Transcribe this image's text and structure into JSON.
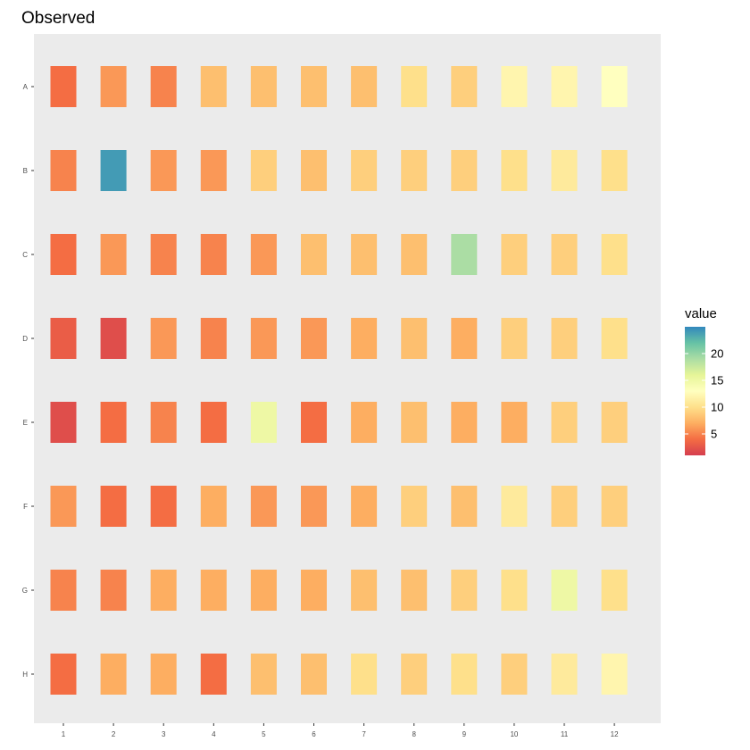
{
  "chart_data": {
    "type": "heatmap",
    "title": "Observed",
    "xlabel": "",
    "ylabel": "",
    "x_categories": [
      "1",
      "2",
      "3",
      "4",
      "5",
      "6",
      "7",
      "8",
      "9",
      "10",
      "11",
      "12"
    ],
    "y_categories": [
      "A",
      "B",
      "C",
      "D",
      "E",
      "F",
      "G",
      "H"
    ],
    "values": [
      [
        4,
        6,
        5,
        8,
        8,
        8,
        8,
        10,
        9,
        12,
        12,
        13
      ],
      [
        5,
        24,
        6,
        6,
        9,
        8,
        9,
        9,
        9,
        10,
        11,
        10
      ],
      [
        4,
        6,
        5,
        5,
        6,
        8,
        8,
        8,
        19,
        9,
        9,
        10
      ],
      [
        3,
        2,
        6,
        5,
        6,
        6,
        7,
        8,
        7,
        9,
        9,
        10
      ],
      [
        2,
        4,
        5,
        4,
        15,
        4,
        7,
        8,
        7,
        7,
        9,
        9
      ],
      [
        6,
        4,
        4,
        7,
        6,
        6,
        7,
        9,
        8,
        11,
        9,
        9
      ],
      [
        5,
        5,
        7,
        7,
        7,
        7,
        8,
        8,
        9,
        10,
        15,
        10
      ],
      [
        4,
        7,
        7,
        4,
        8,
        8,
        10,
        9,
        10,
        9,
        11,
        12
      ]
    ],
    "colorbar": {
      "title": "value",
      "min": 1,
      "max": 25,
      "ticks": [
        5,
        10,
        15,
        20
      ],
      "tick_labels": [
        "5",
        "10",
        "15",
        "20"
      ],
      "palette": [
        "#D53E4F",
        "#F46D43",
        "#FDAE61",
        "#FEE08B",
        "#FFFFBF",
        "#E6F598",
        "#ABDDA4",
        "#66C2A5",
        "#3288BD"
      ]
    },
    "panel_background": "#EBEBEB",
    "grid": false,
    "legend_position": "right"
  }
}
